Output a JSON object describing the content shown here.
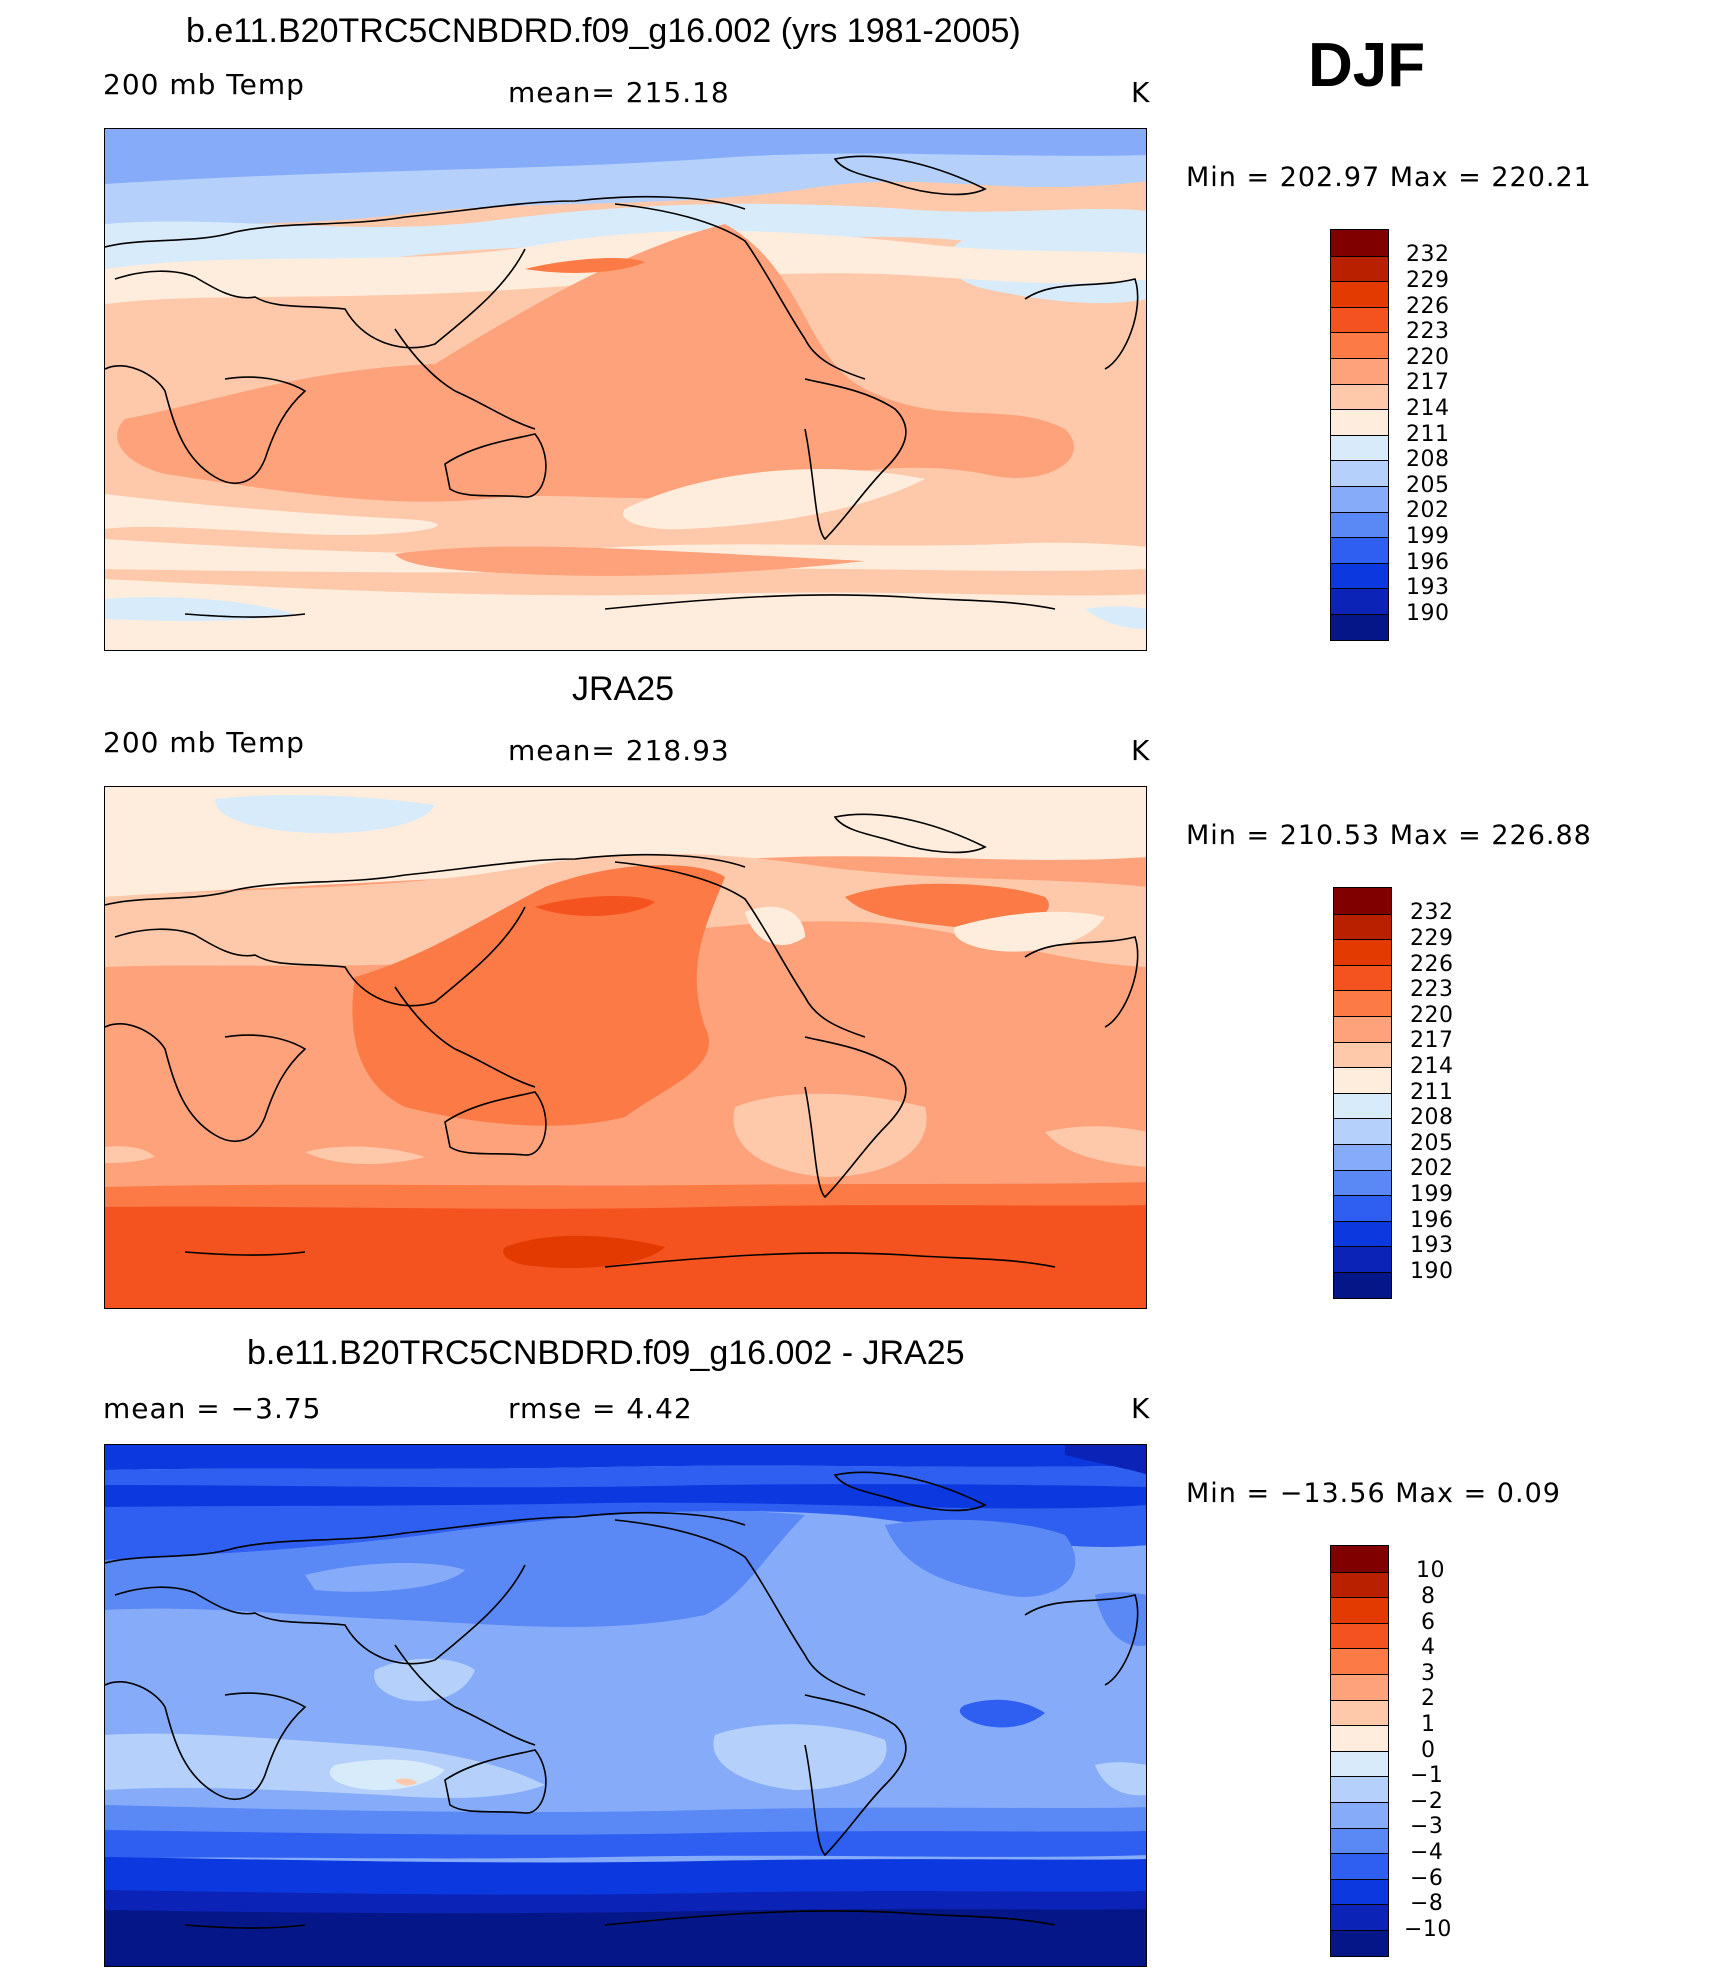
{
  "season": "DJF",
  "panels": [
    {
      "id": "model",
      "title": "b.e11.B20TRC5CNBDRD.f09_g16.002 (yrs 1981-2005)",
      "left_label": "200 mb Temp",
      "center_label": "mean=  215.18",
      "units": "K",
      "minmax": "Min  =  202.97  Max  =  220.21"
    },
    {
      "id": "obs",
      "title": "JRA25",
      "left_label": "200 mb Temp",
      "center_label": "mean=  218.93",
      "units": "K",
      "minmax": "Min  =  210.53  Max  =  226.88"
    },
    {
      "id": "diff",
      "title": "b.e11.B20TRC5CNBDRD.f09_g16.002 - JRA25",
      "left_label": "mean  =     −3.75",
      "center_label": "rmse  =     4.42",
      "units": "K",
      "minmax": "Min  =  −13.56  Max  =     0.09"
    }
  ],
  "colorbars": {
    "temperature": [
      "232",
      "229",
      "226",
      "223",
      "220",
      "217",
      "214",
      "211",
      "208",
      "205",
      "202",
      "199",
      "196",
      "193",
      "190"
    ],
    "difference": [
      "10",
      "8",
      "6",
      "4",
      "3",
      "2",
      "1",
      "0",
      "−1",
      "−2",
      "−3",
      "−4",
      "−6",
      "−8",
      "−10"
    ]
  },
  "palette": [
    "#800000",
    "#b82000",
    "#e23a00",
    "#f4531f",
    "#fc7a45",
    "#fda27a",
    "#fdc9aa",
    "#feeddd",
    "#d8ebfa",
    "#b4d0fb",
    "#86acf9",
    "#5a88f5",
    "#2f5ff0",
    "#0b39df",
    "#0b23b6",
    "#051788"
  ],
  "chart_data": [
    {
      "type": "heatmap",
      "title": "b.e11.B20TRC5CNBDRD.f09_g16.002 (yrs 1981-2005)",
      "variable": "200 mb Temp",
      "units": "K",
      "mean": 215.18,
      "min": 202.97,
      "max": 220.21,
      "contour_levels": [
        190,
        193,
        196,
        199,
        202,
        205,
        208,
        211,
        214,
        217,
        220,
        223,
        226,
        229,
        232
      ]
    },
    {
      "type": "heatmap",
      "title": "JRA25",
      "variable": "200 mb Temp",
      "units": "K",
      "mean": 218.93,
      "min": 210.53,
      "max": 226.88,
      "contour_levels": [
        190,
        193,
        196,
        199,
        202,
        205,
        208,
        211,
        214,
        217,
        220,
        223,
        226,
        229,
        232
      ]
    },
    {
      "type": "heatmap",
      "title": "b.e11.B20TRC5CNBDRD.f09_g16.002 - JRA25",
      "units": "K",
      "mean": -3.75,
      "rmse": 4.42,
      "min": -13.56,
      "max": 0.09,
      "contour_levels": [
        -10,
        -8,
        -6,
        -4,
        -3,
        -2,
        -1,
        0,
        1,
        2,
        3,
        4,
        6,
        8,
        10
      ]
    }
  ]
}
